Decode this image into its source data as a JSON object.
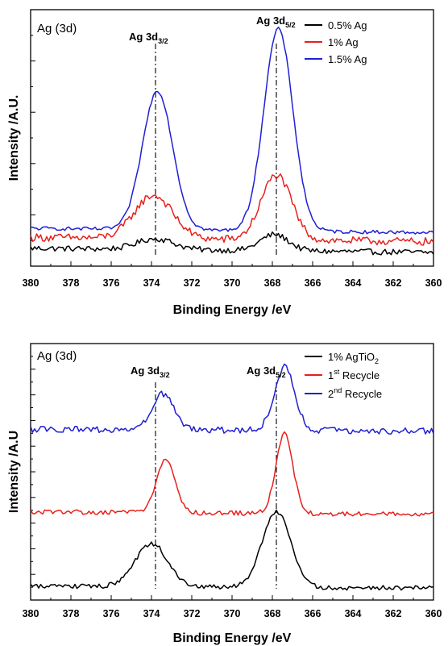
{
  "chart_data": [
    {
      "type": "line",
      "panel_label": "Ag (3d)",
      "xlabel": "Binding Energy /eV",
      "ylabel": "Intensity /A.U.",
      "xlim": [
        380,
        360
      ],
      "x_ticks": [
        "380",
        "378",
        "376",
        "374",
        "372",
        "370",
        "368",
        "366",
        "364",
        "362",
        "360"
      ],
      "y_ticks_labeled": false,
      "grid": false,
      "legend_position": "top-right",
      "colors": {
        "black": "#000000",
        "red": "#e8201c",
        "blue": "#1f1fd6"
      },
      "peak_markers": [
        {
          "x": 373.8,
          "main": "Ag 3d",
          "sub": "3/2"
        },
        {
          "x": 367.8,
          "main": "Ag 3d",
          "sub": "5/2"
        }
      ],
      "series": [
        {
          "name": "0.5% Ag",
          "color": "#000000",
          "baseline": 4,
          "noise": 1.6,
          "peaks": [
            {
              "x": 373.8,
              "h": 6,
              "w": 0.9
            },
            {
              "x": 367.9,
              "h": 9,
              "w": 0.7
            }
          ]
        },
        {
          "name": "1% Ag",
          "color": "#e8201c",
          "baseline": 10,
          "noise": 2.2,
          "peaks": [
            {
              "x": 373.9,
              "h": 24,
              "w": 0.95
            },
            {
              "x": 367.8,
              "h": 36,
              "w": 0.75
            }
          ]
        },
        {
          "name": "1.5% Ag",
          "color": "#1f1fd6",
          "baseline": 15,
          "noise": 1.0,
          "peaks": [
            {
              "x": 373.7,
              "h": 77,
              "w": 0.75
            },
            {
              "x": 367.7,
              "h": 112,
              "w": 0.72
            }
          ]
        }
      ]
    },
    {
      "type": "line",
      "panel_label": "Ag (3d)",
      "xlabel": "Binding Energy /eV",
      "ylabel": "Intensity /A.U",
      "xlim": [
        380,
        360
      ],
      "x_ticks": [
        "380",
        "378",
        "376",
        "374",
        "372",
        "370",
        "368",
        "366",
        "364",
        "362",
        "360"
      ],
      "y_ticks_labeled": false,
      "grid": false,
      "legend_position": "top-right",
      "colors": {
        "black": "#000000",
        "red": "#e8201c",
        "blue": "#1f1fd6"
      },
      "peak_markers": [
        {
          "x": 373.8,
          "main": "Ag 3d",
          "sub": "3/2"
        },
        {
          "x": 367.8,
          "main": "Ag 3d",
          "sub": "5/2"
        }
      ],
      "series": [
        {
          "name": "1% AgTiO",
          "name_sub": "2",
          "name_sup": "",
          "color": "#000000",
          "baseline": 6,
          "noise": 2.6,
          "peaks": [
            {
              "x": 374.0,
              "h": 48,
              "w": 0.8
            },
            {
              "x": 367.8,
              "h": 84,
              "w": 0.7
            }
          ]
        },
        {
          "name": "1",
          "name_sup": "st",
          "name_rest": " Recycle",
          "color": "#e8201c",
          "baseline": 88,
          "noise": 2.6,
          "peaks": [
            {
              "x": 373.3,
              "h": 60,
              "w": 0.45
            },
            {
              "x": 367.4,
              "h": 88,
              "w": 0.42
            }
          ]
        },
        {
          "name": "2",
          "name_sup": "nd",
          "name_rest": " Recycle",
          "color": "#1f1fd6",
          "baseline": 180,
          "noise": 3.6,
          "peaks": [
            {
              "x": 373.4,
              "h": 40,
              "w": 0.55
            },
            {
              "x": 367.4,
              "h": 70,
              "w": 0.5
            }
          ]
        }
      ]
    }
  ]
}
